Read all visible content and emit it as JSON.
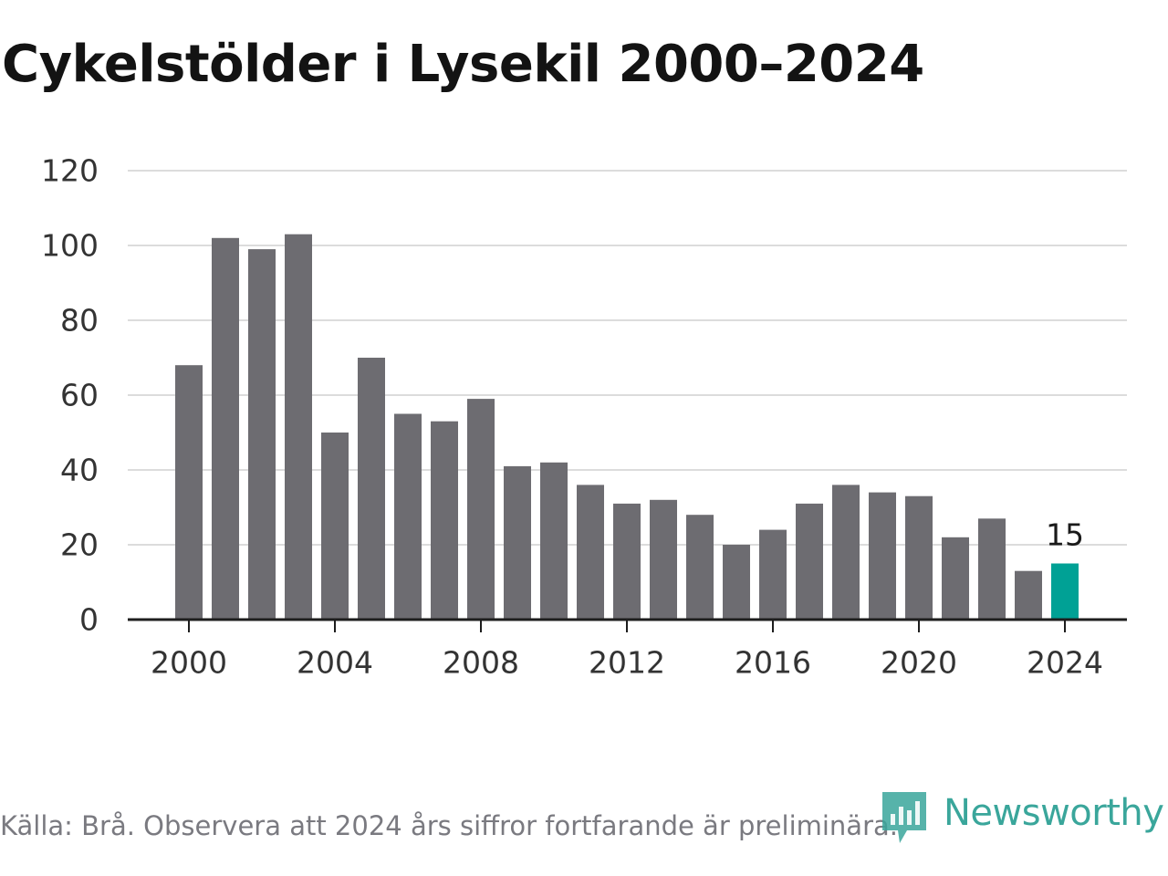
{
  "title": "Cykelstölder i Lysekil 2000–2024",
  "footer": {
    "source": "Källa: Brå. Observera att 2024 års siffror fortfarande är preliminära.",
    "brand": "Newsworthy"
  },
  "colors": {
    "bar": "#6d6c71",
    "highlight": "#00a195",
    "grid": "#dcdcdc",
    "axis": "#1e1e1e",
    "text": "#333333",
    "brand": "#3aa69b"
  },
  "chart_data": {
    "type": "bar",
    "title": "Cykelstölder i Lysekil 2000–2024",
    "xlabel": "",
    "ylabel": "",
    "categories": [
      "2000",
      "2001",
      "2002",
      "2003",
      "2004",
      "2005",
      "2006",
      "2007",
      "2008",
      "2009",
      "2010",
      "2011",
      "2012",
      "2013",
      "2014",
      "2015",
      "2016",
      "2017",
      "2018",
      "2019",
      "2020",
      "2021",
      "2022",
      "2023",
      "2024"
    ],
    "values": [
      68,
      102,
      99,
      103,
      50,
      70,
      55,
      53,
      59,
      41,
      42,
      36,
      31,
      32,
      28,
      20,
      24,
      31,
      36,
      34,
      33,
      22,
      27,
      13,
      15
    ],
    "highlight_index": 24,
    "highlight_label": "15",
    "ylim": [
      0,
      120
    ],
    "y_ticks": [
      "0",
      "20",
      "40",
      "60",
      "80",
      "100",
      "120"
    ],
    "x_ticks": [
      "2000",
      "2004",
      "2008",
      "2012",
      "2016",
      "2020",
      "2024"
    ],
    "grid": true
  }
}
